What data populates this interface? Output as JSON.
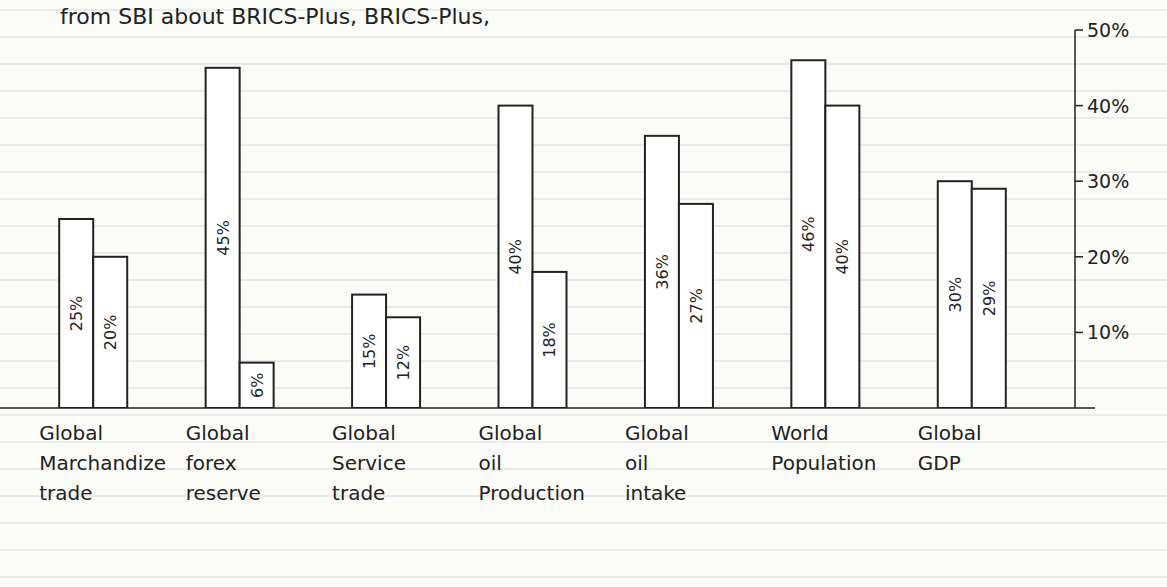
{
  "chart_data": {
    "type": "bar",
    "title": "from SBI about BRICS-Plus, BRICS-Plus,",
    "categories": [
      "Global Marchandize trade",
      "Global forex reserve",
      "Global Service trade",
      "Global oil Production",
      "Global oil intake",
      "World Population",
      "Global GDP"
    ],
    "series": [
      {
        "color": "#ffffff",
        "values": [
          25,
          45,
          15,
          40,
          36,
          46,
          30
        ],
        "value_labels": [
          "25%",
          "45%",
          "15%",
          "40%",
          "36%",
          "46%",
          "30%"
        ]
      },
      {
        "color": "#ffffff",
        "values": [
          20,
          6,
          12,
          18,
          27,
          40,
          29
        ],
        "value_labels": [
          "20%",
          "6%",
          "12%",
          "18%",
          "27%",
          "40%",
          "29%"
        ]
      }
    ],
    "ylim": [
      0,
      50
    ],
    "yticks": [
      {
        "value": 10,
        "label": "10%"
      },
      {
        "value": 20,
        "label": "20%"
      },
      {
        "value": 30,
        "label": "30%"
      },
      {
        "value": 40,
        "label": "40%"
      },
      {
        "value": 50,
        "label": "50%"
      }
    ],
    "data_labels": true,
    "grid": false
  }
}
